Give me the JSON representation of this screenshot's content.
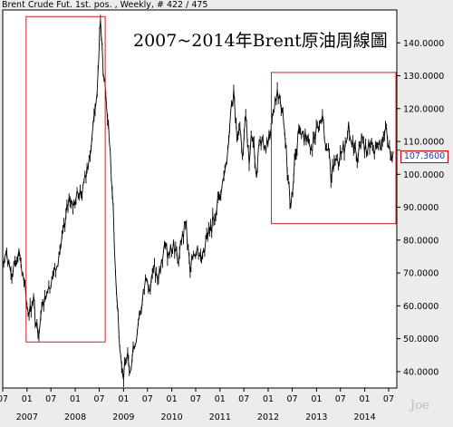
{
  "header": {
    "text": "Brent Crude Fut. 1st. pos. , Weekly, # 422 / 475"
  },
  "watermark": {
    "text": "Joe"
  },
  "chart_data": {
    "type": "line",
    "title": "2007~2014年Brent原油周線圖",
    "xlabel": "",
    "ylabel": "",
    "ylim": [
      35,
      150
    ],
    "yticks": [
      40,
      50,
      60,
      70,
      80,
      90,
      100,
      110,
      120,
      130,
      140
    ],
    "ytick_labels": [
      "40.0000",
      "50.0000",
      "60.0000",
      "70.0000",
      "80.0000",
      "90.0000",
      "100.0000",
      "110.0000",
      "120.0000",
      "130.0000",
      "140.0000"
    ],
    "xlim": [
      "2006-07-01",
      "2014-09-01"
    ],
    "x_month_ticks": [
      {
        "x": "2006-07-01",
        "label": "07"
      },
      {
        "x": "2007-01-01",
        "label": "01"
      },
      {
        "x": "2007-07-01",
        "label": "07"
      },
      {
        "x": "2008-01-01",
        "label": "01"
      },
      {
        "x": "2008-07-01",
        "label": "07"
      },
      {
        "x": "2009-01-01",
        "label": "01"
      },
      {
        "x": "2009-07-01",
        "label": "07"
      },
      {
        "x": "2010-01-01",
        "label": "01"
      },
      {
        "x": "2010-07-01",
        "label": "07"
      },
      {
        "x": "2011-01-01",
        "label": "01"
      },
      {
        "x": "2011-07-01",
        "label": "07"
      },
      {
        "x": "2012-01-01",
        "label": "01"
      },
      {
        "x": "2012-07-01",
        "label": "07"
      },
      {
        "x": "2013-01-01",
        "label": "01"
      },
      {
        "x": "2013-07-01",
        "label": "07"
      },
      {
        "x": "2014-01-01",
        "label": "01"
      },
      {
        "x": "2014-07-01",
        "label": "07"
      }
    ],
    "x_year_labels": [
      {
        "x": "2007-01-01",
        "label": "2007"
      },
      {
        "x": "2008-01-01",
        "label": "2008"
      },
      {
        "x": "2009-01-01",
        "label": "2009"
      },
      {
        "x": "2010-01-01",
        "label": "2010"
      },
      {
        "x": "2011-01-01",
        "label": "2011"
      },
      {
        "x": "2012-01-01",
        "label": "2012"
      },
      {
        "x": "2013-01-01",
        "label": "2013"
      },
      {
        "x": "2014-01-01",
        "label": "2014"
      }
    ],
    "grid": false,
    "last_value": {
      "label": "107.3600",
      "value": 107.36
    },
    "series": [
      {
        "color": "#000000",
        "points": [
          [
            "2006-07-01",
            74
          ],
          [
            "2006-08-01",
            76
          ],
          [
            "2006-09-01",
            70
          ],
          [
            "2006-10-01",
            73
          ],
          [
            "2006-11-01",
            77
          ],
          [
            "2006-12-01",
            70
          ],
          [
            "2007-01-01",
            60
          ],
          [
            "2007-02-01",
            58
          ],
          [
            "2007-02-20",
            63
          ],
          [
            "2007-03-10",
            54
          ],
          [
            "2007-03-25",
            51
          ],
          [
            "2007-04-15",
            57
          ],
          [
            "2007-05-15",
            63
          ],
          [
            "2007-06-15",
            66
          ],
          [
            "2007-07-15",
            69
          ],
          [
            "2007-08-15",
            72
          ],
          [
            "2007-09-15",
            78
          ],
          [
            "2007-10-15",
            84
          ],
          [
            "2007-11-15",
            93
          ],
          [
            "2007-12-15",
            90
          ],
          [
            "2008-01-15",
            95
          ],
          [
            "2008-02-15",
            93
          ],
          [
            "2008-03-15",
            100
          ],
          [
            "2008-04-15",
            105
          ],
          [
            "2008-05-15",
            115
          ],
          [
            "2008-06-15",
            125
          ],
          [
            "2008-07-10",
            147
          ],
          [
            "2008-07-30",
            131
          ],
          [
            "2008-08-20",
            124
          ],
          [
            "2008-09-15",
            110
          ],
          [
            "2008-10-15",
            90
          ],
          [
            "2008-11-01",
            70
          ],
          [
            "2008-11-20",
            58
          ],
          [
            "2008-12-10",
            45
          ],
          [
            "2008-12-25",
            39
          ],
          [
            "2009-01-15",
            42
          ],
          [
            "2009-02-01",
            46
          ],
          [
            "2009-02-20",
            40
          ],
          [
            "2009-03-15",
            48
          ],
          [
            "2009-04-15",
            52
          ],
          [
            "2009-05-15",
            58
          ],
          [
            "2009-06-15",
            68
          ],
          [
            "2009-07-15",
            65
          ],
          [
            "2009-08-15",
            72
          ],
          [
            "2009-09-15",
            68
          ],
          [
            "2009-10-15",
            74
          ],
          [
            "2009-11-15",
            78
          ],
          [
            "2009-12-15",
            75
          ],
          [
            "2010-01-15",
            80
          ],
          [
            "2010-02-15",
            73
          ],
          [
            "2010-03-15",
            79
          ],
          [
            "2010-04-15",
            85
          ],
          [
            "2010-05-20",
            70
          ],
          [
            "2010-06-15",
            76
          ],
          [
            "2010-07-15",
            78
          ],
          [
            "2010-08-15",
            74
          ],
          [
            "2010-09-15",
            80
          ],
          [
            "2010-10-15",
            83
          ],
          [
            "2010-11-15",
            86
          ],
          [
            "2010-12-15",
            93
          ],
          [
            "2011-01-15",
            96
          ],
          [
            "2011-02-15",
            103
          ],
          [
            "2011-03-15",
            114
          ],
          [
            "2011-04-15",
            126
          ],
          [
            "2011-05-10",
            110
          ],
          [
            "2011-06-01",
            114
          ],
          [
            "2011-06-20",
            105
          ],
          [
            "2011-07-15",
            118
          ],
          [
            "2011-08-10",
            103
          ],
          [
            "2011-08-25",
            112
          ],
          [
            "2011-09-15",
            110
          ],
          [
            "2011-10-05",
            99
          ],
          [
            "2011-10-25",
            110
          ],
          [
            "2011-11-15",
            111
          ],
          [
            "2011-12-15",
            107
          ],
          [
            "2012-01-15",
            111
          ],
          [
            "2012-02-15",
            119
          ],
          [
            "2012-03-10",
            126
          ],
          [
            "2012-03-25",
            124
          ],
          [
            "2012-04-15",
            120
          ],
          [
            "2012-05-10",
            110
          ],
          [
            "2012-06-01",
            98
          ],
          [
            "2012-06-20",
            90
          ],
          [
            "2012-07-05",
            95
          ],
          [
            "2012-07-25",
            106
          ],
          [
            "2012-08-20",
            114
          ],
          [
            "2012-09-15",
            113
          ],
          [
            "2012-10-15",
            110
          ],
          [
            "2012-11-15",
            108
          ],
          [
            "2012-12-15",
            111
          ],
          [
            "2013-01-15",
            114
          ],
          [
            "2013-02-15",
            118
          ],
          [
            "2013-03-10",
            109
          ],
          [
            "2013-04-01",
            108
          ],
          [
            "2013-04-20",
            98
          ],
          [
            "2013-05-15",
            104
          ],
          [
            "2013-06-15",
            103
          ],
          [
            "2013-07-15",
            107
          ],
          [
            "2013-08-15",
            110
          ],
          [
            "2013-09-01",
            116
          ],
          [
            "2013-09-20",
            110
          ],
          [
            "2013-10-15",
            108
          ],
          [
            "2013-11-05",
            104
          ],
          [
            "2013-11-25",
            109
          ],
          [
            "2013-12-15",
            111
          ],
          [
            "2014-01-15",
            106
          ],
          [
            "2014-02-15",
            109
          ],
          [
            "2014-03-15",
            106
          ],
          [
            "2014-04-15",
            109
          ],
          [
            "2014-05-15",
            110
          ],
          [
            "2014-06-15",
            114
          ],
          [
            "2014-07-15",
            106
          ],
          [
            "2014-08-05",
            107
          ]
        ]
      }
    ],
    "highlight_boxes": [
      {
        "x0": "2006-12-25",
        "x1": "2008-08-15",
        "y0": 49,
        "y1": 148
      },
      {
        "x0": "2012-01-25",
        "x1": "2014-08-25",
        "y0": 85,
        "y1": 131
      }
    ]
  }
}
